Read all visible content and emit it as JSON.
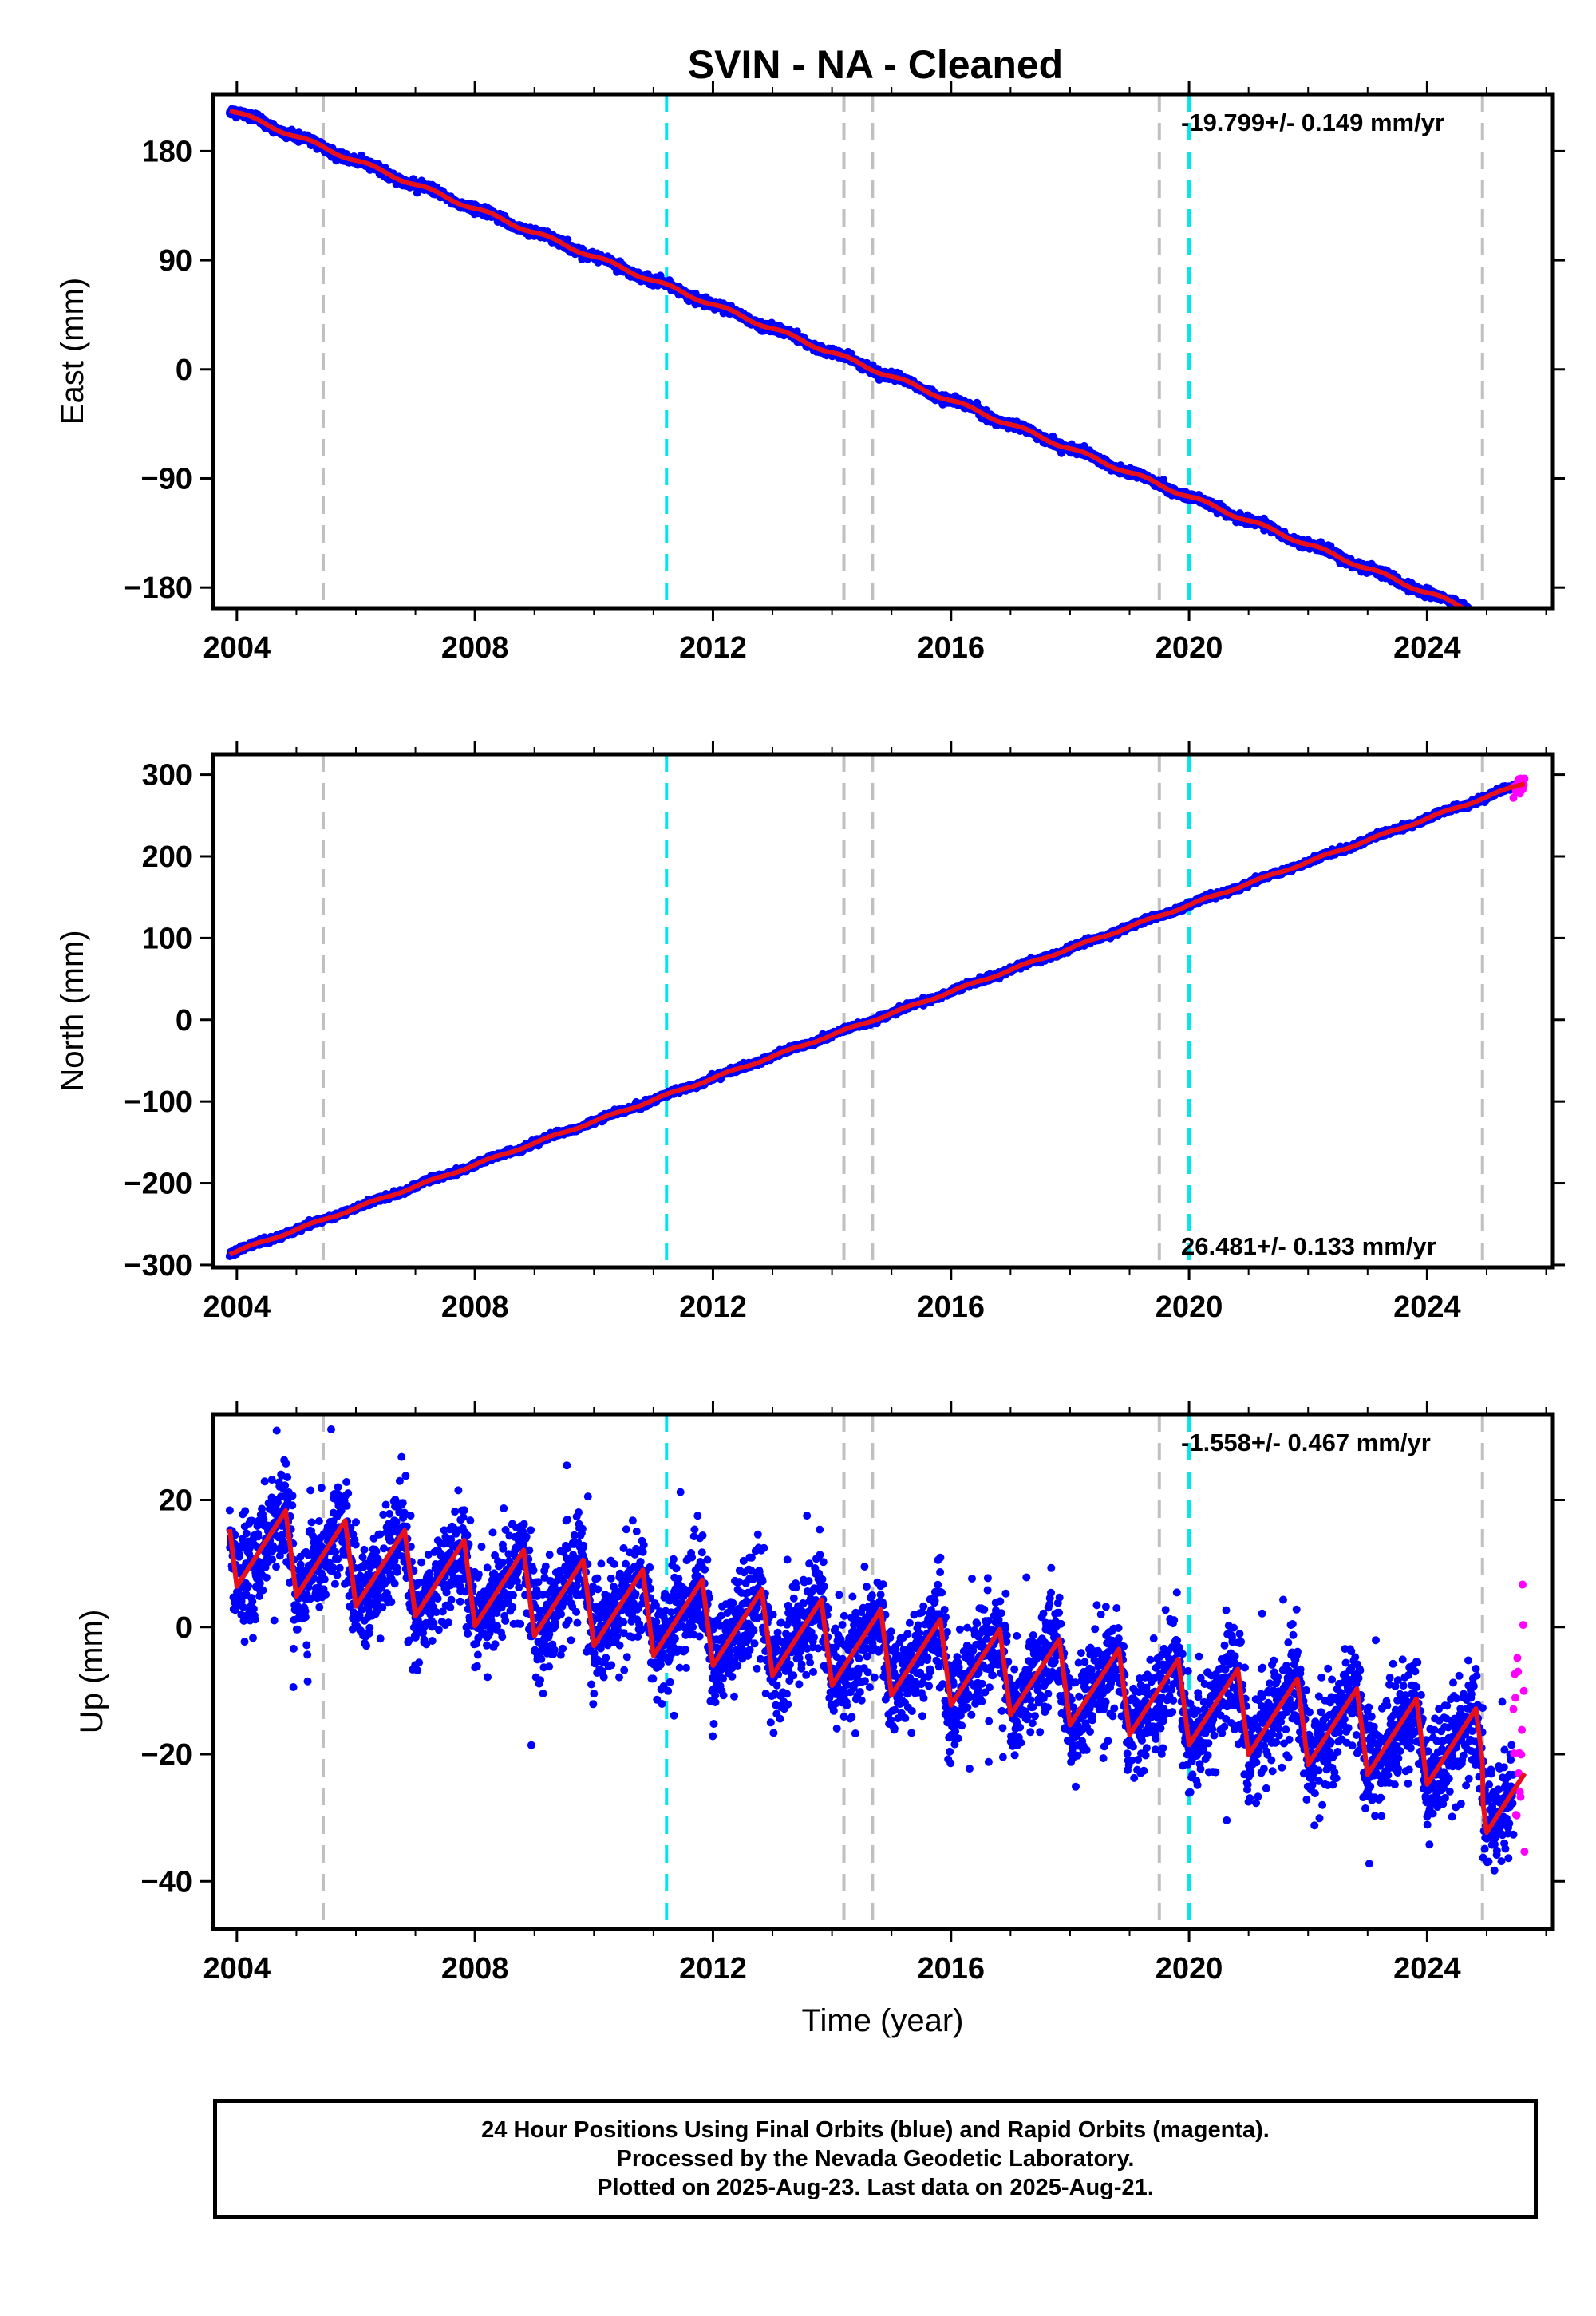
{
  "title": "SVIN  - NA - Cleaned",
  "colors": {
    "final_orbits": "#0000ff",
    "rapid_orbits": "#ff00ff",
    "model": "#e8101a",
    "antenna_change_lines": "#c0c0c0",
    "earthquake_lines": "#00e5ee",
    "frame": "#000000"
  },
  "chart_data": [
    {
      "type": "scatter",
      "panel": "east",
      "ylabel": "East (mm)",
      "xlabel": "",
      "xlim": [
        2003.6,
        2026.1
      ],
      "ylim": [
        -197,
        227
      ],
      "x_ticks": [
        "2004",
        "2008",
        "2012",
        "2016",
        "2020",
        "2024"
      ],
      "y_ticks": [
        "180",
        "90",
        "0",
        "−90",
        "−180"
      ],
      "y_tick_values": [
        180,
        90,
        0,
        -90,
        -180
      ],
      "rate_label": "-19.799+/- 0.149 mm/yr",
      "rate_label_position": "top-right",
      "data_start": 2003.88,
      "final_orbits_end": 2025.45,
      "data_end": 2025.64,
      "rate_mm_per_yr": -19.799,
      "value_at_2014_7": 0,
      "seasonal_amplitude_mm": 1.5,
      "daily_scatter_mm": 1.6,
      "model_line": "red",
      "rapid_orbit_points": "magenta"
    },
    {
      "type": "scatter",
      "panel": "north",
      "ylabel": "North (mm)",
      "xlabel": "",
      "xlim": [
        2003.6,
        2026.1
      ],
      "ylim": [
        -303,
        325
      ],
      "x_ticks": [
        "2004",
        "2008",
        "2012",
        "2016",
        "2020",
        "2024"
      ],
      "y_ticks": [
        "300",
        "200",
        "100",
        "0",
        "−100",
        "−200",
        "−300"
      ],
      "y_tick_values": [
        300,
        200,
        100,
        0,
        -100,
        -200,
        -300
      ],
      "rate_label": "26.481+/- 0.133 mm/yr",
      "rate_label_position": "bottom-right",
      "data_start": 2003.88,
      "final_orbits_end": 2025.45,
      "data_end": 2025.64,
      "rate_mm_per_yr": 26.481,
      "value_at_2014_7": 0,
      "seasonal_amplitude_mm": 1.2,
      "daily_scatter_mm": 1.6,
      "model_line": "red",
      "rapid_orbit_points": "magenta"
    },
    {
      "type": "scatter",
      "panel": "up",
      "ylabel": "Up (mm)",
      "xlabel": "Time (year)",
      "xlim": [
        2003.6,
        2026.1
      ],
      "ylim": [
        -47.5,
        33.5
      ],
      "x_ticks": [
        "2004",
        "2008",
        "2012",
        "2016",
        "2020",
        "2024"
      ],
      "y_ticks": [
        "20",
        "0",
        "−20",
        "−40"
      ],
      "y_tick_values": [
        20,
        0,
        -20,
        -40
      ],
      "rate_label": "-1.558+/- 0.467 mm/yr",
      "rate_label_position": "top-right",
      "data_start": 2003.88,
      "final_orbits_end": 2025.45,
      "data_end": 2025.64,
      "rate_mm_per_yr": -1.558,
      "value_at_2004": 13,
      "seasonal_amplitude_mm": 5.5,
      "daily_scatter_mm": 4,
      "model_line": "red",
      "rapid_orbit_points": "magenta"
    }
  ],
  "event_lines": {
    "antenna_changes": [
      2005.45,
      2014.2,
      2014.68,
      2019.5,
      2024.93
    ],
    "earthquakes": [
      2011.22,
      2020.0
    ]
  },
  "caption": {
    "line1": "24 Hour Positions Using Final Orbits (blue) and Rapid Orbits (magenta).",
    "line2": "Processed by the Nevada Geodetic Laboratory.",
    "line3": "Plotted on 2025-Aug-23. Last data on 2025-Aug-21."
  }
}
